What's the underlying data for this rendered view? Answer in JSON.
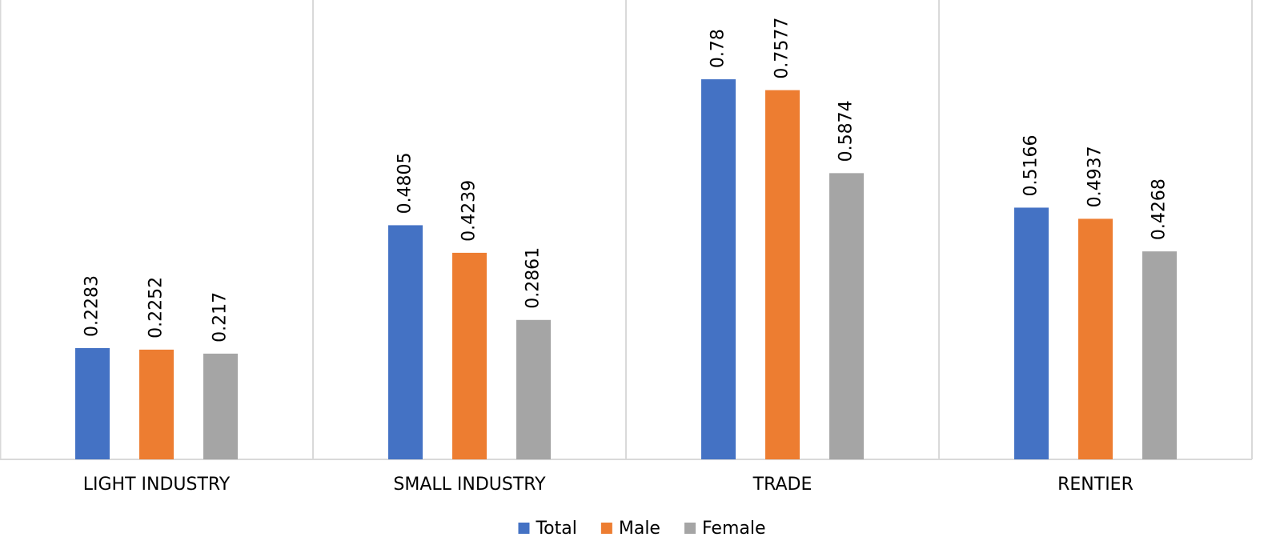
{
  "chart_data": {
    "type": "bar",
    "categories": [
      "LIGHT INDUSTRY",
      "SMALL INDUSTRY",
      "TRADE",
      "RENTIER"
    ],
    "series": [
      {
        "name": "Total",
        "color": "#4472c4",
        "values": [
          0.2283,
          0.4805,
          0.78,
          0.5166
        ]
      },
      {
        "name": "Male",
        "color": "#ed7d31",
        "values": [
          0.2252,
          0.4239,
          0.7577,
          0.4937
        ]
      },
      {
        "name": "Female",
        "color": "#a5a5a5",
        "values": [
          0.217,
          0.2861,
          0.5874,
          0.4268
        ]
      }
    ],
    "ylim": [
      0,
      0.9
    ],
    "legend": "bottom"
  }
}
